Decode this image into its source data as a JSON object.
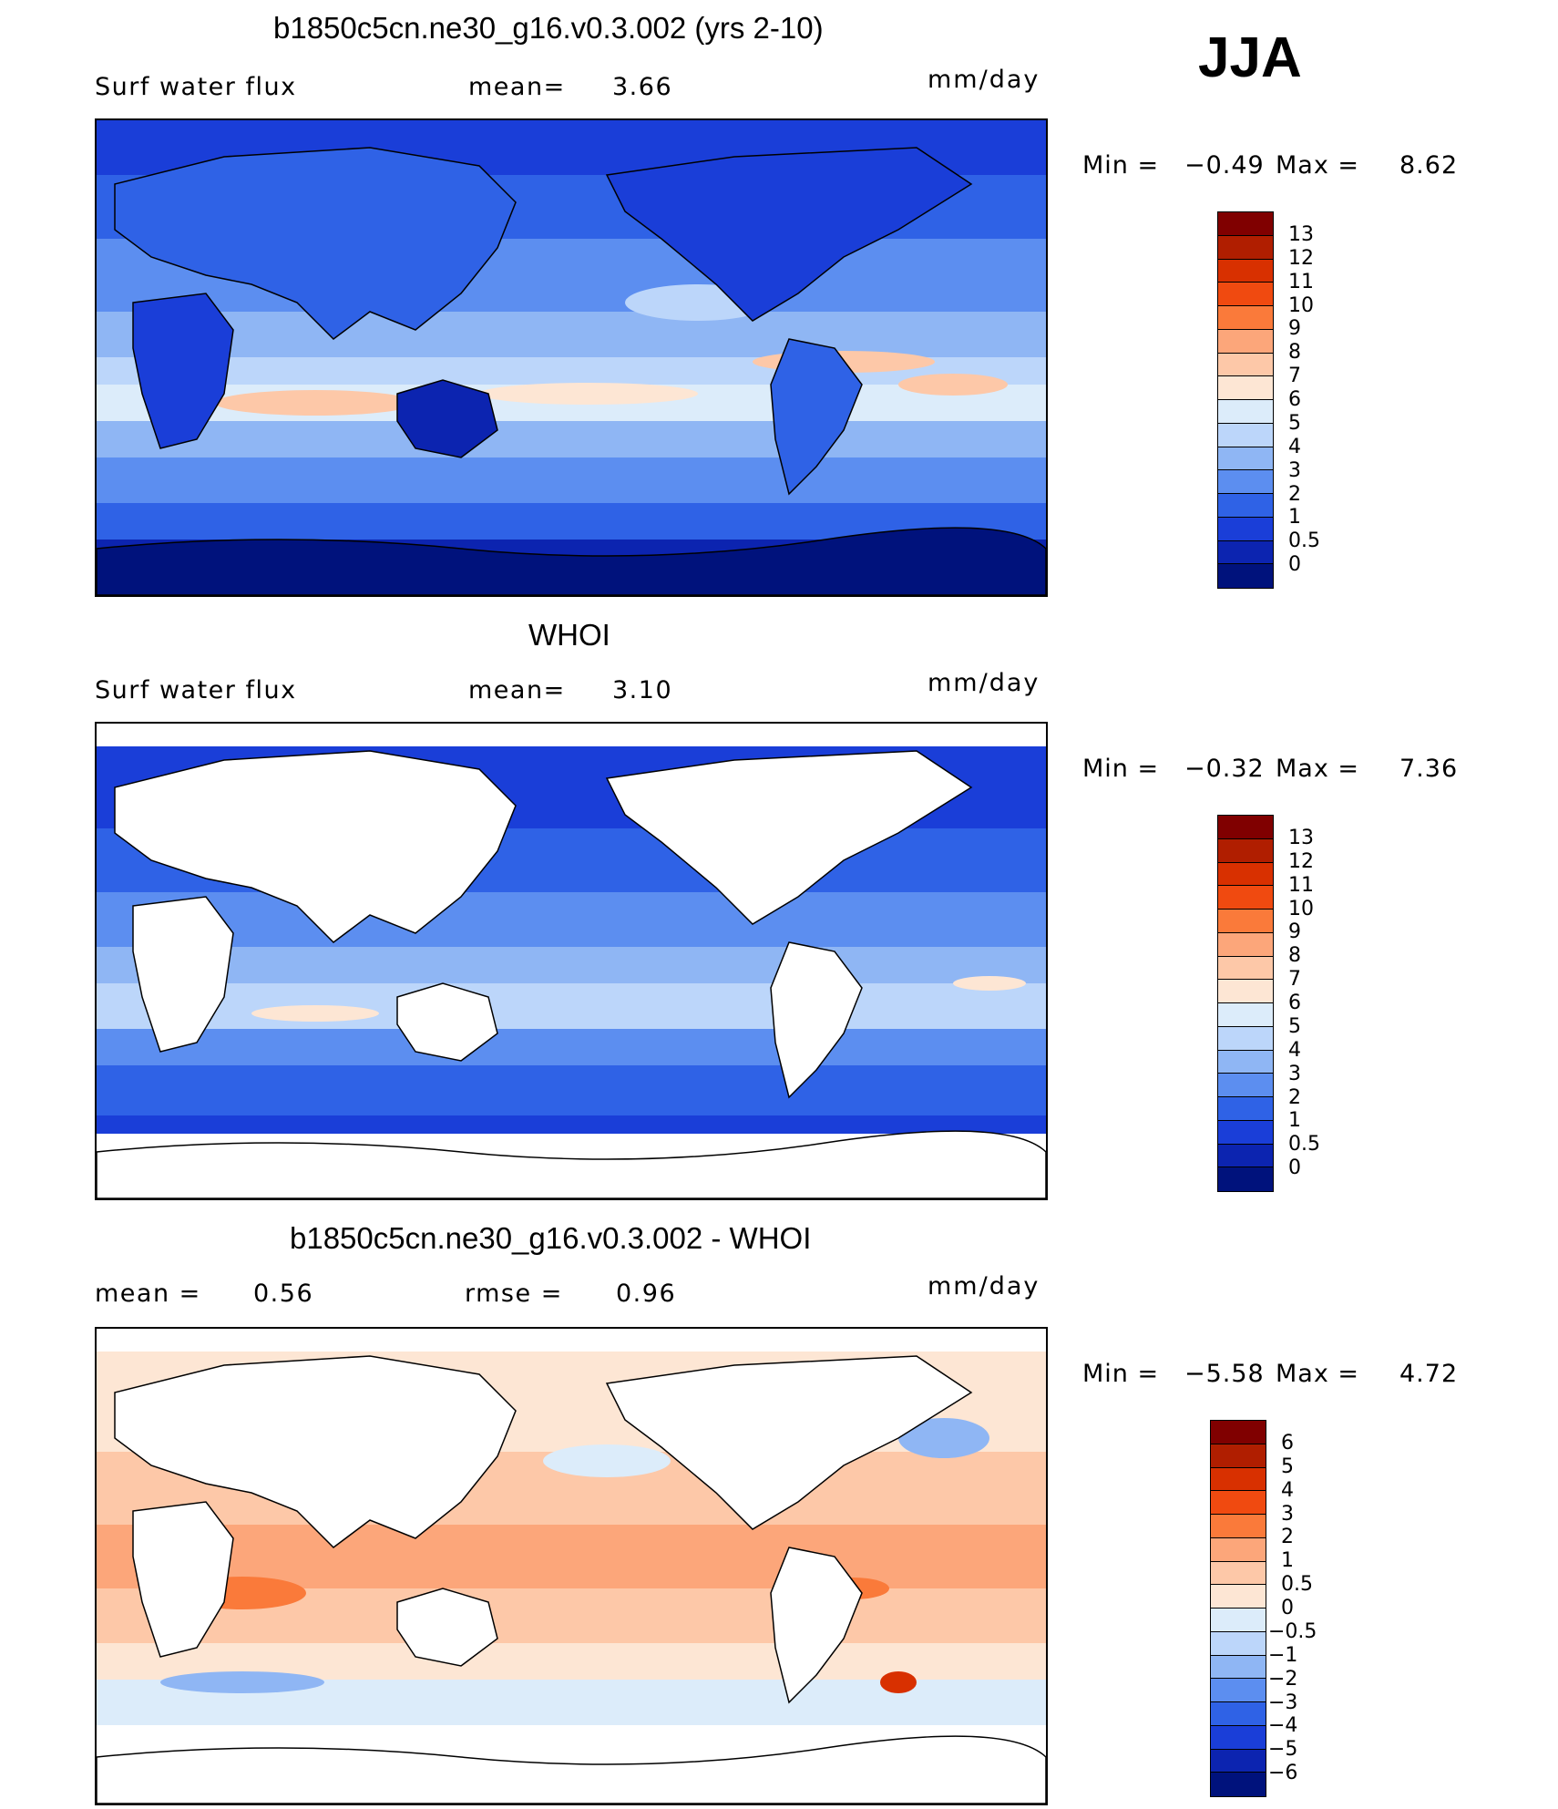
{
  "season": "JJA",
  "panels": [
    {
      "title": "b1850c5cn.ne30_g16.v0.3.002 (yrs 2-10)",
      "left_label": "Surf water flux",
      "mid_label": "mean=",
      "mid_value": "3.66",
      "units": "mm/day",
      "min_label": "Min =",
      "min_value": "−0.49",
      "max_label": "Max =",
      "max_value": "8.62"
    },
    {
      "title": "WHOI",
      "left_label": "Surf water flux",
      "mid_label": "mean=",
      "mid_value": "3.10",
      "units": "mm/day",
      "min_label": "Min =",
      "min_value": "−0.32",
      "max_label": "Max =",
      "max_value": "7.36"
    },
    {
      "title": "b1850c5cn.ne30_g16.v0.3.002 - WHOI",
      "left_label": "mean =",
      "left_value": "0.56",
      "mid_label": "rmse =",
      "mid_value": "0.96",
      "units": "mm/day",
      "min_label": "Min =",
      "min_value": "−5.58",
      "max_label": "Max =",
      "max_value": "4.72"
    }
  ],
  "colorbars": {
    "absolute": {
      "ticks": [
        "13",
        "12",
        "11",
        "10",
        "9",
        "8",
        "7",
        "6",
        "5",
        "4",
        "3",
        "2",
        "1",
        "0.5",
        "0"
      ],
      "colors": [
        "#800000",
        "#b01e00",
        "#d83000",
        "#f04a10",
        "#fa7a3a",
        "#fca67a",
        "#fdc8a8",
        "#fde6d4",
        "#dcecfa",
        "#bcd6fa",
        "#8fb6f4",
        "#5c8ef0",
        "#2f62e6",
        "#1a3ed8",
        "#0c24b0",
        "#00127c"
      ]
    },
    "difference": {
      "ticks": [
        "6",
        "5",
        "4",
        "3",
        "2",
        "1",
        "0.5",
        "0",
        "−0.5",
        "−1",
        "−2",
        "−3",
        "−4",
        "−5",
        "−6"
      ],
      "colors": [
        "#800000",
        "#b01e00",
        "#d83000",
        "#f04a10",
        "#fa7a3a",
        "#fca67a",
        "#fdc8a8",
        "#fde6d4",
        "#dcecfa",
        "#bcd6fa",
        "#8fb6f4",
        "#5c8ef0",
        "#2f62e6",
        "#1a3ed8",
        "#0c24b0",
        "#00127c"
      ]
    }
  },
  "palette": {
    "ocean_deep": "#0a1e9c",
    "ocean_mid": "#2f62e6",
    "ocean_light": "#8fb6f4",
    "pale_blue": "#dcecfa",
    "pale_orange": "#fde6d4",
    "orange": "#fca67a",
    "land_white": "#ffffff"
  }
}
